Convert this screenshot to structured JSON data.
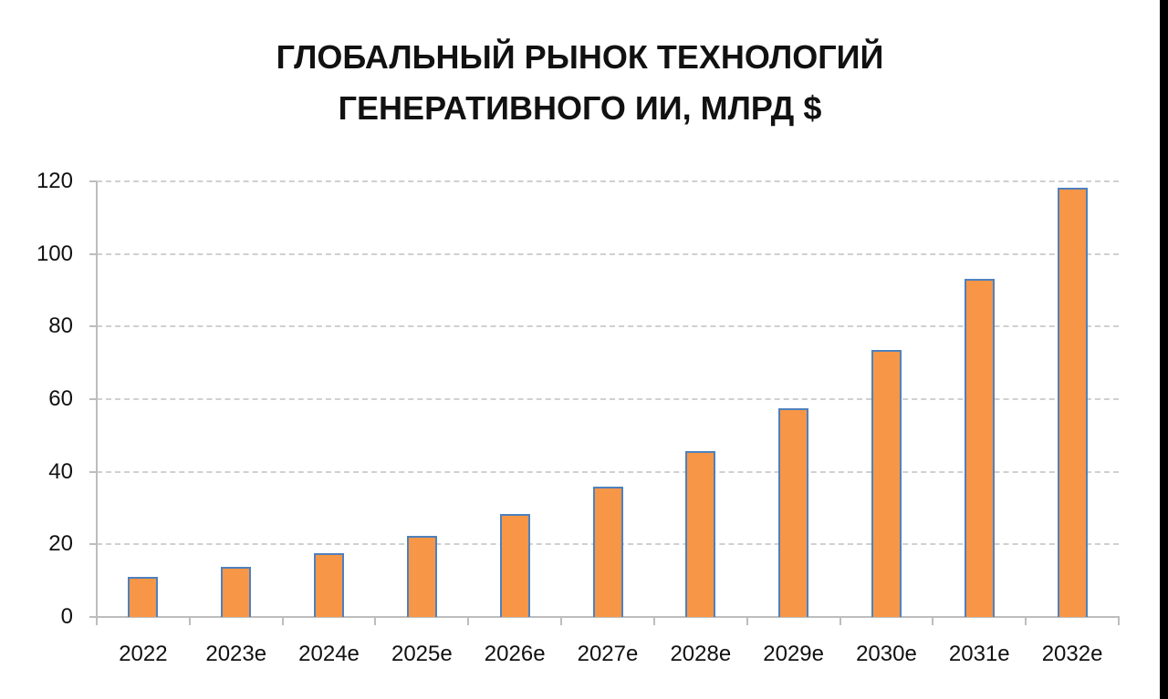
{
  "chart_data": {
    "type": "bar",
    "title": "ГЛОБАЛЬНЫЙ РЫНОК ТЕХНОЛОГИЙ ГЕНЕРАТИВНОГО ИИ, МЛРД $",
    "title_lines": [
      "ГЛОБАЛЬНЫЙ РЫНОК ТЕХНОЛОГИЙ",
      "ГЕНЕРАТИВНОГО ИИ, МЛРД $"
    ],
    "categories": [
      "2022",
      "2023e",
      "2024e",
      "2025e",
      "2026e",
      "2027e",
      "2028e",
      "2029e",
      "2030e",
      "2031e",
      "2032e"
    ],
    "values": [
      11.0,
      13.8,
      17.6,
      22.3,
      28.4,
      35.9,
      45.7,
      57.5,
      73.6,
      93.1,
      118.2
    ],
    "xlabel": "",
    "ylabel": "",
    "ylim": [
      0,
      120
    ],
    "yticks": [
      "0",
      "20",
      "40",
      "60",
      "80",
      "100",
      "120"
    ],
    "grid": true,
    "legend": null,
    "colors": {
      "bar_fill": "#f79646",
      "bar_border": "#4f81bd",
      "grid": "#d0d0d0",
      "axis": "#bdbdbd"
    }
  }
}
